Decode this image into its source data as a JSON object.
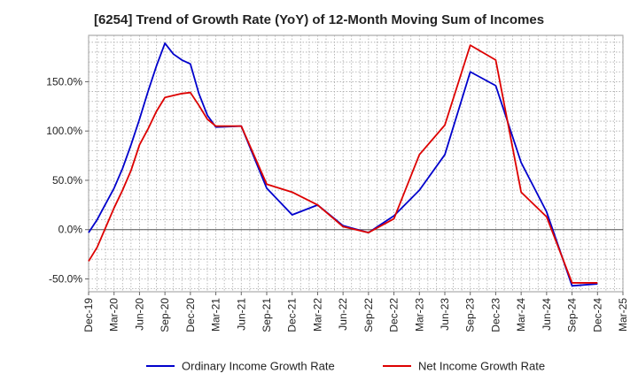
{
  "chart_data": {
    "type": "line",
    "title": "[6254]  Trend of Growth Rate (YoY) of 12-Month Moving Sum of Incomes",
    "xlabel": "",
    "ylabel": "",
    "x_ticks": [
      "Dec-19",
      "Mar-20",
      "Jun-20",
      "Sep-20",
      "Dec-20",
      "Mar-21",
      "Jun-21",
      "Sep-21",
      "Dec-21",
      "Mar-22",
      "Jun-22",
      "Sep-22",
      "Dec-22",
      "Mar-23",
      "Jun-23",
      "Sep-23",
      "Dec-23",
      "Mar-24",
      "Jun-24",
      "Sep-24",
      "Dec-24",
      "Mar-25"
    ],
    "y_ticks": [
      150,
      100,
      50,
      0,
      -50
    ],
    "y_tick_labels": [
      "150.0%",
      "100.0%",
      "50.0%",
      "0.0%",
      "-50.0%"
    ],
    "ylim": [
      -63,
      197
    ],
    "x_months_range": [
      "Dec-19",
      "Mar-25"
    ],
    "grid": true,
    "legend_position": "bottom",
    "series": [
      {
        "name": "Ordinary Income Growth Rate",
        "color": "#0000cc",
        "points": [
          [
            "Dec-19",
            -3
          ],
          [
            "Jan-20",
            10
          ],
          [
            "Feb-20",
            26
          ],
          [
            "Mar-20",
            42
          ],
          [
            "Apr-20",
            62
          ],
          [
            "May-20",
            86
          ],
          [
            "Jun-20",
            112
          ],
          [
            "Jul-20",
            140
          ],
          [
            "Aug-20",
            166
          ],
          [
            "Sep-20",
            189
          ],
          [
            "Oct-20",
            178
          ],
          [
            "Nov-20",
            172
          ],
          [
            "Dec-20",
            168
          ],
          [
            "Jan-21",
            138
          ],
          [
            "Feb-21",
            116
          ],
          [
            "Mar-21",
            104
          ],
          [
            "Jun-21",
            105
          ],
          [
            "Sep-21",
            42
          ],
          [
            "Dec-21",
            15
          ],
          [
            "Mar-22",
            25
          ],
          [
            "Jun-22",
            4
          ],
          [
            "Sep-22",
            -3
          ],
          [
            "Dec-22",
            14
          ],
          [
            "Mar-23",
            40
          ],
          [
            "Jun-23",
            76
          ],
          [
            "Sep-23",
            160
          ],
          [
            "Dec-23",
            146
          ],
          [
            "Mar-24",
            68
          ],
          [
            "Jun-24",
            18
          ],
          [
            "Sep-24",
            -57
          ],
          [
            "Dec-24",
            -55
          ]
        ]
      },
      {
        "name": "Net Income Growth Rate",
        "color": "#dd0000",
        "points": [
          [
            "Dec-19",
            -32
          ],
          [
            "Jan-20",
            -18
          ],
          [
            "Feb-20",
            2
          ],
          [
            "Mar-20",
            22
          ],
          [
            "Apr-20",
            40
          ],
          [
            "May-20",
            60
          ],
          [
            "Jun-20",
            86
          ],
          [
            "Jul-20",
            102
          ],
          [
            "Aug-20",
            120
          ],
          [
            "Sep-20",
            134
          ],
          [
            "Oct-20",
            136
          ],
          [
            "Nov-20",
            138
          ],
          [
            "Dec-20",
            139
          ],
          [
            "Jan-21",
            126
          ],
          [
            "Feb-21",
            112
          ],
          [
            "Mar-21",
            105
          ],
          [
            "Jun-21",
            105
          ],
          [
            "Sep-21",
            46
          ],
          [
            "Dec-21",
            38
          ],
          [
            "Mar-22",
            25
          ],
          [
            "Jun-22",
            3
          ],
          [
            "Sep-22",
            -3
          ],
          [
            "Dec-22",
            11
          ],
          [
            "Mar-23",
            76
          ],
          [
            "Jun-23",
            106
          ],
          [
            "Sep-23",
            187
          ],
          [
            "Dec-23",
            172
          ],
          [
            "Mar-24",
            38
          ],
          [
            "Jun-24",
            13
          ],
          [
            "Sep-24",
            -54
          ],
          [
            "Dec-24",
            -54
          ]
        ]
      }
    ]
  }
}
